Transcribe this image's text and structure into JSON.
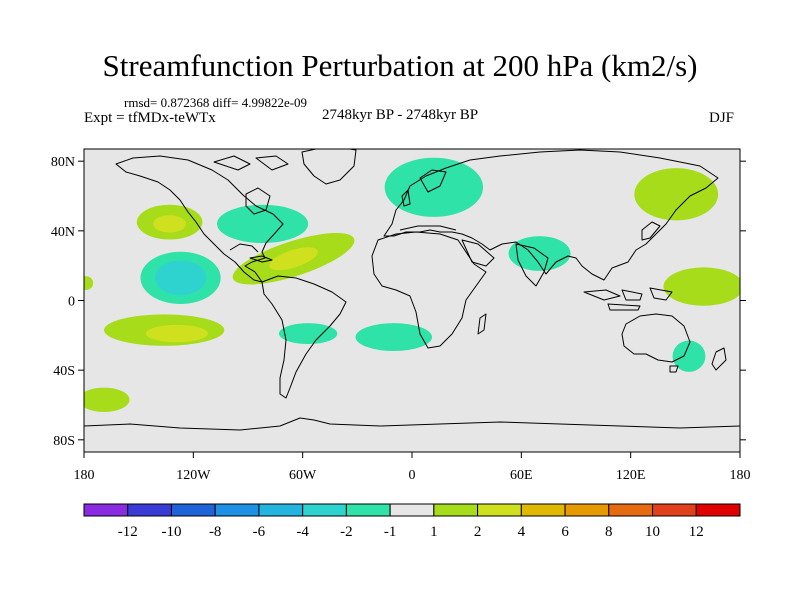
{
  "title": "Streamfunction Perturbation at 200 hPa (km2/s)",
  "stats": "rmsd= 0.872368 diff= 4.99822e-09",
  "expt": "Expt = tfMDx-teWTx",
  "period": "2748kyr BP - 2748kyr BP",
  "season": "DJF",
  "axes": {
    "y_ticks": [
      {
        "label": "80N",
        "lat": 80
      },
      {
        "label": "40N",
        "lat": 40
      },
      {
        "label": "0",
        "lat": 0
      },
      {
        "label": "40S",
        "lat": -40
      },
      {
        "label": "80S",
        "lat": -80
      }
    ],
    "x_ticks": [
      {
        "label": "180",
        "lon": -180
      },
      {
        "label": "120W",
        "lon": -120
      },
      {
        "label": "60W",
        "lon": -60
      },
      {
        "label": "0",
        "lon": 0
      },
      {
        "label": "60E",
        "lon": 60
      },
      {
        "label": "120E",
        "lon": 120
      },
      {
        "label": "180",
        "lon": 180
      }
    ]
  },
  "colorbar": {
    "colors": [
      "#8a2be2",
      "#3a3ad6",
      "#1e64d8",
      "#1e90e6",
      "#23b4e0",
      "#2ed3d0",
      "#2fe2a8",
      "#e6e6e6",
      "#a6dc1a",
      "#cfe01e",
      "#e0b800",
      "#e69a00",
      "#e66a10",
      "#e0401a",
      "#e00000"
    ],
    "labels": [
      "-12",
      "-10",
      "-8",
      "-6",
      "-4",
      "-2",
      "-1",
      "1",
      "2",
      "4",
      "6",
      "8",
      "10",
      "12"
    ]
  },
  "anomalies": [
    {
      "lon": -133,
      "lat": 45,
      "rlon": 18,
      "rlat": 10,
      "color": "#a6dc1a"
    },
    {
      "lon": -133,
      "lat": 44,
      "rlon": 9,
      "rlat": 5,
      "color": "#cfe01e"
    },
    {
      "lon": -127,
      "lat": 13,
      "rlon": 22,
      "rlat": 15,
      "color": "#2fe2a8"
    },
    {
      "lon": -127,
      "lat": 13,
      "rlon": 14,
      "rlat": 10,
      "color": "#2ed3d0"
    },
    {
      "lon": -136,
      "lat": -17,
      "rlon": 33,
      "rlat": 9,
      "color": "#a6dc1a"
    },
    {
      "lon": -129,
      "lat": -19,
      "rlon": 17,
      "rlat": 5,
      "color": "#cfe01e"
    },
    {
      "lon": -82,
      "lat": 44,
      "rlon": 25,
      "rlat": 11,
      "color": "#2fe2a8"
    },
    {
      "lon": -65,
      "lat": 24,
      "rlon": 35,
      "rlat": 10,
      "color": "#a6dc1a",
      "rot": -18
    },
    {
      "lon": -65,
      "lat": 24,
      "rlon": 14,
      "rlat": 5,
      "color": "#cfe01e",
      "rot": -18
    },
    {
      "lon": -57,
      "lat": -19,
      "rlon": 16,
      "rlat": 6,
      "color": "#2fe2a8"
    },
    {
      "lon": -10,
      "lat": -21,
      "rlon": 21,
      "rlat": 8,
      "color": "#2fe2a8"
    },
    {
      "lon": 12,
      "lat": 65,
      "rlon": 27,
      "rlat": 17,
      "color": "#2fe2a8"
    },
    {
      "lon": 70,
      "lat": 27,
      "rlon": 17,
      "rlat": 10,
      "color": "#2fe2a8"
    },
    {
      "lon": 145,
      "lat": 61,
      "rlon": 23,
      "rlat": 15,
      "color": "#a6dc1a"
    },
    {
      "lon": 160,
      "lat": 8,
      "rlon": 22,
      "rlat": 11,
      "color": "#a6dc1a"
    },
    {
      "lon": 152,
      "lat": -32,
      "rlon": 9,
      "rlat": 9,
      "color": "#2fe2a8"
    },
    {
      "lon": -169,
      "lat": -57,
      "rlon": 14,
      "rlat": 7,
      "color": "#a6dc1a"
    },
    {
      "lon": -179,
      "lat": 10,
      "rlon": 4,
      "rlat": 4,
      "color": "#a6dc1a"
    }
  ]
}
